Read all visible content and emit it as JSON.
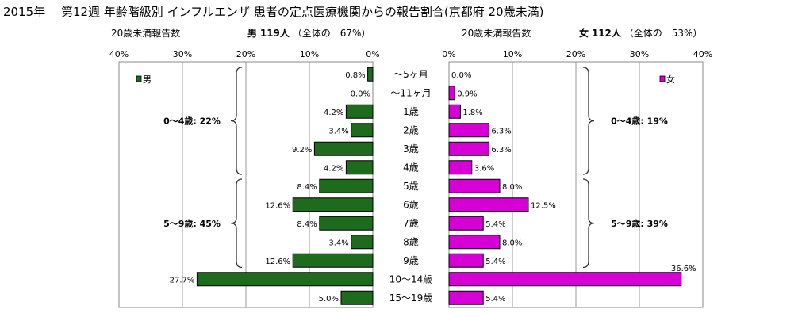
{
  "title": "2015年　 第12週 年齢階級別 インフルエンザ 患者の定点医療機関からの報告割合(京都府 20歳未満)",
  "male": {
    "header_label": "20歳未満報告数",
    "header_sex": "男",
    "header_count": "119人",
    "header_share": "（全体の　67%）",
    "legend": "男",
    "color": "#1e6b1e"
  },
  "female": {
    "header_label": "20歳未満報告数",
    "header_sex": "女",
    "header_count": "112人",
    "header_share": "（全体の　53%）",
    "legend": "女",
    "color": "#d600d6"
  },
  "chart_data": {
    "type": "bar",
    "orientation": "horizontal-butterfly",
    "categories": [
      "〜5ヶ月",
      "〜11ヶ月",
      "1歳",
      "2歳",
      "3歳",
      "4歳",
      "5歳",
      "6歳",
      "7歳",
      "8歳",
      "9歳",
      "10〜14歳",
      "15〜19歳"
    ],
    "series": [
      {
        "name": "男",
        "values": [
          0.8,
          0.0,
          4.2,
          3.4,
          9.2,
          4.2,
          8.4,
          12.6,
          8.4,
          3.4,
          12.6,
          27.7,
          5.0
        ],
        "labels": [
          "0.8%",
          "0.0%",
          "4.2%",
          "3.4%",
          "9.2%",
          "4.2%",
          "8.4%",
          "12.6%",
          "8.4%",
          "3.4%",
          "12.6%",
          "27.7%",
          "5.0%"
        ]
      },
      {
        "name": "女",
        "values": [
          0.0,
          0.9,
          1.8,
          6.3,
          6.3,
          3.6,
          8.0,
          12.5,
          5.4,
          8.0,
          5.4,
          36.6,
          5.4
        ],
        "labels": [
          "0.0%",
          "0.9%",
          "1.8%",
          "6.3%",
          "6.3%",
          "3.6%",
          "8.0%",
          "12.5%",
          "5.4%",
          "8.0%",
          "5.4%",
          "36.6%",
          "5.4%"
        ]
      }
    ],
    "xlim": [
      0,
      40
    ],
    "left_ticks": [
      "40%",
      "30%",
      "20%",
      "10%",
      "0%"
    ],
    "right_ticks": [
      "0%",
      "10%",
      "20%",
      "30%",
      "40%"
    ],
    "grid": true,
    "groups": {
      "male": [
        {
          "label": "0〜4歳: 22%",
          "from": 0,
          "to": 5
        },
        {
          "label": "5〜9歳: 45%",
          "from": 6,
          "to": 10
        }
      ],
      "female": [
        {
          "label": "0〜4歳: 19%",
          "from": 0,
          "to": 5
        },
        {
          "label": "5〜9歳: 39%",
          "from": 6,
          "to": 10
        }
      ]
    }
  }
}
